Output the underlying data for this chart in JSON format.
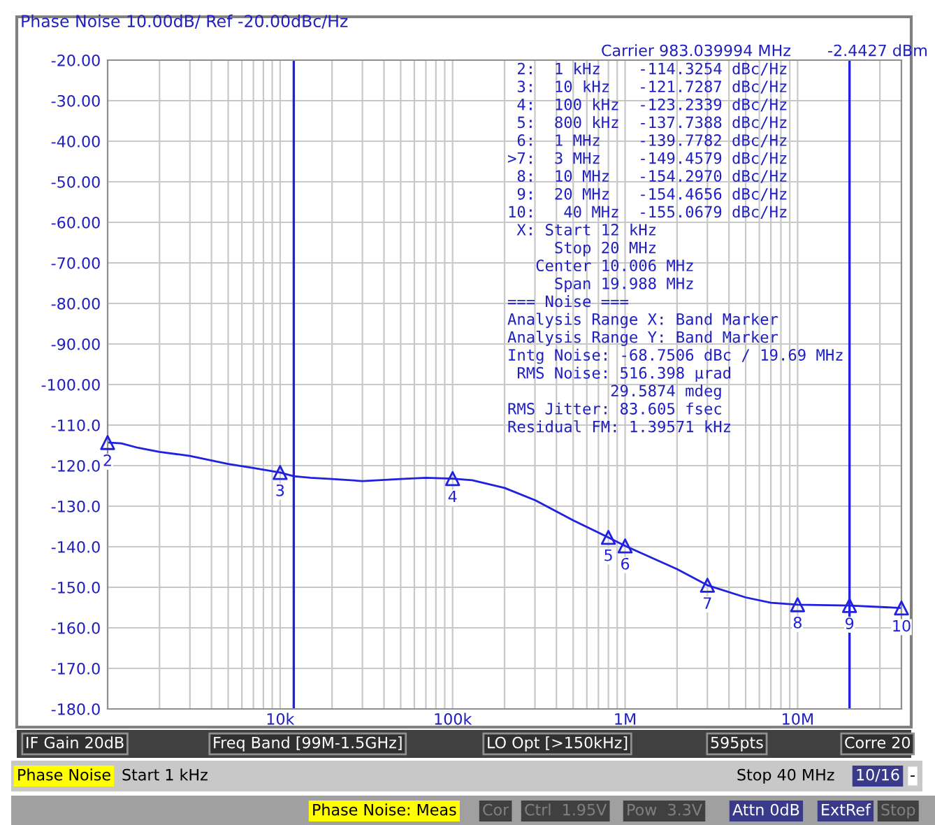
{
  "chart_data": {
    "type": "line",
    "title": "Phase Noise 10.00dB/ Ref -20.00dBc/Hz",
    "log": "x",
    "grid": true,
    "line_style": "solid",
    "xlim": [
      1000,
      40000000
    ],
    "xticks": [
      {
        "value": 1000,
        "label": null
      },
      {
        "value": 10000,
        "label": "10k"
      },
      {
        "value": 100000,
        "label": "100k"
      },
      {
        "value": 1000000,
        "label": "1M"
      },
      {
        "value": 10000000,
        "label": "10M"
      }
    ],
    "ylim": [
      -180,
      -20
    ],
    "yticks": [
      {
        "value": -20,
        "label": "-20.00"
      },
      {
        "value": -30,
        "label": "-30.00"
      },
      {
        "value": -40,
        "label": "-40.00"
      },
      {
        "value": -50,
        "label": "-50.00"
      },
      {
        "value": -60,
        "label": "-60.00"
      },
      {
        "value": -70,
        "label": "-70.00"
      },
      {
        "value": -80,
        "label": "-80.00"
      },
      {
        "value": -90,
        "label": "-90.00"
      },
      {
        "value": -100,
        "label": "-100.00"
      },
      {
        "value": -110,
        "label": "-110.0"
      },
      {
        "value": -120,
        "label": "-120.0"
      },
      {
        "value": -130,
        "label": "-130.0"
      },
      {
        "value": -140,
        "label": "-140.0"
      },
      {
        "value": -150,
        "label": "-150.0"
      },
      {
        "value": -160,
        "label": "-160.0"
      },
      {
        "value": -170,
        "label": "-170.0"
      },
      {
        "value": -180,
        "label": "-180.0"
      }
    ],
    "series": [
      {
        "color": "#2020e0",
        "x": [
          1000,
          1200,
          1500,
          2000,
          3000,
          5000,
          7000,
          10000,
          12000,
          15000,
          20000,
          30000,
          50000,
          70000,
          100000,
          130000,
          200000,
          300000,
          500000,
          800000,
          1000000,
          2000000,
          3000000,
          5000000,
          7000000,
          10000000,
          20000000,
          40000000
        ],
        "values": [
          -114.3,
          -114.5,
          -115.6,
          -116.6,
          -117.6,
          -119.6,
          -120.6,
          -121.7,
          -122.6,
          -123.0,
          -123.3,
          -123.8,
          -123.3,
          -123.0,
          -123.2,
          -123.6,
          -125.5,
          -128.5,
          -133.5,
          -137.7,
          -139.8,
          -145.5,
          -149.5,
          -152.5,
          -153.8,
          -154.3,
          -154.5,
          -155.1
        ]
      },
      {
        "type": "scatter",
        "color": "#2020e0",
        "marker": "triangle",
        "x": [
          1000,
          10000,
          100000,
          800000,
          1000000,
          3000000,
          10000000,
          20000000,
          40000000
        ],
        "values": [
          -114.3,
          -121.7,
          -123.2,
          -137.7,
          -139.8,
          -149.5,
          -154.3,
          -154.5,
          -155.1
        ]
      }
    ],
    "ref_lines": [
      {
        "axis": "x",
        "value": 12000,
        "color": "#2020e0"
      },
      {
        "axis": "x",
        "value": 20000000,
        "color": "#2020e0"
      }
    ],
    "annotations": [
      "Carrier 983.039994 MHz",
      "-2.4427 dBm",
      " 2:  1 kHz    -114.3254 dBc/Hz",
      " 3:  10 kHz   -121.7287 dBc/Hz",
      " 4:  100 kHz  -123.2339 dBc/Hz",
      " 5:  800 kHz  -137.7388 dBc/Hz",
      " 6:  1 MHz    -139.7782 dBc/Hz",
      ">7:  3 MHz    -149.4579 dBc/Hz",
      " 8:  10 MHz   -154.2970 dBc/Hz",
      " 9:  20 MHz   -154.4656 dBc/Hz",
      "10:   40 MHz  -155.0679 dBc/Hz",
      " X: Start 12 kHz",
      "     Stop 20 MHz",
      "   Center 10.006 MHz",
      "     Span 19.988 MHz",
      "=== Noise ===",
      "Analysis Range X: Band Marker",
      "Analysis Range Y: Band Marker",
      "Intg Noise: -68.7506 dBc / 19.69 MHz",
      " RMS Noise: 516.398 µrad",
      "           29.5874 mdeg",
      "RMS Jitter: 83.605 fsec",
      "Residual FM: 1.39571 kHz",
      "IF Gain 20dB",
      "Freq Band [99M-1.5GHz]",
      "LO Opt [>150kHz]",
      "595pts",
      "Corre 20",
      "Phase Noise",
      "Start 1 kHz",
      "Stop 40 MHz",
      "10/16",
      "-",
      "Phase Noise: Meas",
      "Cor",
      "Ctrl  1.95V",
      "Pow  3.3V",
      "Attn 0dB",
      "ExtRef",
      "Stop",
      {
        "text": "2",
        "x": 1000,
        "y": -114.3
      },
      {
        "text": "3",
        "x": 10000,
        "y": -121.7
      },
      {
        "text": "4",
        "x": 100000,
        "y": -123.2
      },
      {
        "text": "5",
        "x": 800000,
        "y": -137.7
      },
      {
        "text": "6",
        "x": 1000000,
        "y": -139.8
      },
      {
        "text": "7",
        "x": 3000000,
        "y": -149.5
      },
      {
        "text": "8",
        "x": 10000000,
        "y": -154.3
      },
      {
        "text": "9",
        "x": 20000000,
        "y": -154.5
      },
      {
        "text": "10",
        "x": 40000000,
        "y": -155.1
      }
    ]
  }
}
